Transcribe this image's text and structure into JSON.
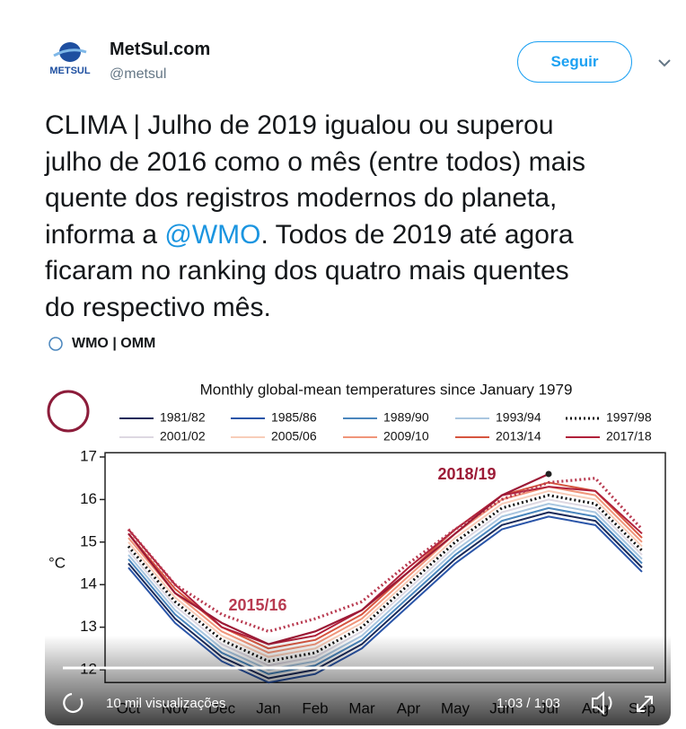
{
  "tweet": {
    "author": {
      "name": "MetSul.com",
      "handle": "@metsul",
      "logo_text": "METSUL"
    },
    "follow_button": "Seguir",
    "text_lines": [
      [
        "CLIMA | Julho de 2019 igualou ou superou"
      ],
      [
        "julho de 2016 como o mês (entre todos) mais"
      ],
      [
        "quente dos registros modernos do planeta,"
      ],
      [
        "informa a ",
        "@WMO",
        ". Todos de 2019 até agora"
      ],
      [
        "ficaram no ranking dos quatro mais quentes"
      ],
      [
        "do respectivo mês."
      ]
    ],
    "media": {
      "source": "WMO | OMM",
      "views": "10 mil visualizações",
      "time": "1:03 / 1:03"
    }
  },
  "chart_data": {
    "type": "line",
    "title": "Monthly global-mean temperatures since January 1979",
    "y_label": "°C",
    "categories": [
      "Oct",
      "Nov",
      "Dec",
      "Jan",
      "Feb",
      "Mar",
      "Apr",
      "May",
      "Jun",
      "Jul",
      "Aug",
      "Sep"
    ],
    "ylim": [
      11.7,
      17.1
    ],
    "yticks": [
      12,
      13,
      14,
      15,
      16,
      17
    ],
    "series": [
      {
        "name": "1981/82",
        "color": "#1a2a5a",
        "values": [
          14.5,
          13.2,
          12.3,
          11.8,
          12.0,
          12.6,
          13.6,
          14.6,
          15.4,
          15.7,
          15.5,
          14.4
        ]
      },
      {
        "name": "1985/86",
        "color": "#2a55a8",
        "values": [
          14.4,
          13.1,
          12.2,
          11.7,
          11.9,
          12.5,
          13.5,
          14.5,
          15.3,
          15.6,
          15.4,
          14.3
        ]
      },
      {
        "name": "1989/90",
        "color": "#4a86bd",
        "values": [
          14.6,
          13.3,
          12.4,
          11.9,
          12.1,
          12.7,
          13.7,
          14.7,
          15.5,
          15.8,
          15.6,
          14.5
        ]
      },
      {
        "name": "1993/94",
        "color": "#a9c6e0",
        "values": [
          14.7,
          13.4,
          12.5,
          12.0,
          12.2,
          12.8,
          13.8,
          14.8,
          15.6,
          15.9,
          15.7,
          14.6
        ]
      },
      {
        "name": "1997/98",
        "color": "#111111",
        "style": "dotted",
        "values": [
          14.9,
          13.6,
          12.7,
          12.2,
          12.4,
          13.0,
          14.0,
          15.0,
          15.8,
          16.1,
          15.9,
          14.8
        ]
      },
      {
        "name": "2001/02",
        "color": "#ddd8e2",
        "values": [
          14.8,
          13.5,
          12.6,
          12.1,
          12.3,
          12.9,
          13.9,
          14.9,
          15.7,
          16.0,
          15.8,
          14.7
        ]
      },
      {
        "name": "2005/06",
        "color": "#f8cdb9",
        "values": [
          15.0,
          13.7,
          12.8,
          12.3,
          12.5,
          13.1,
          14.1,
          15.1,
          15.9,
          16.2,
          16.0,
          14.9
        ]
      },
      {
        "name": "2009/10",
        "color": "#f0957a",
        "values": [
          15.1,
          13.8,
          12.9,
          12.4,
          12.6,
          13.2,
          14.2,
          15.2,
          16.0,
          16.3,
          16.1,
          15.0
        ]
      },
      {
        "name": "2013/14",
        "color": "#d6553f",
        "values": [
          15.2,
          13.9,
          13.0,
          12.5,
          12.7,
          13.3,
          14.3,
          15.3,
          16.1,
          16.4,
          16.2,
          15.1
        ]
      },
      {
        "name": "2017/18",
        "color": "#b0203a",
        "values": [
          15.3,
          14.0,
          13.0,
          12.6,
          12.8,
          13.4,
          14.4,
          15.3,
          16.1,
          16.3,
          16.2,
          15.2
        ]
      }
    ],
    "annotations": [
      {
        "text": "2015/16",
        "color": "#b83a50",
        "style": "dotted",
        "values": [
          15.3,
          14.0,
          13.3,
          12.9,
          13.2,
          13.6,
          14.5,
          15.3,
          16.0,
          16.4,
          16.5,
          15.3
        ]
      },
      {
        "text": "2018/19",
        "color": "#9c1a36",
        "values": [
          15.2,
          13.8,
          13.1,
          12.6,
          12.9,
          13.4,
          14.3,
          15.2,
          16.1,
          16.6,
          null,
          null
        ]
      }
    ]
  }
}
